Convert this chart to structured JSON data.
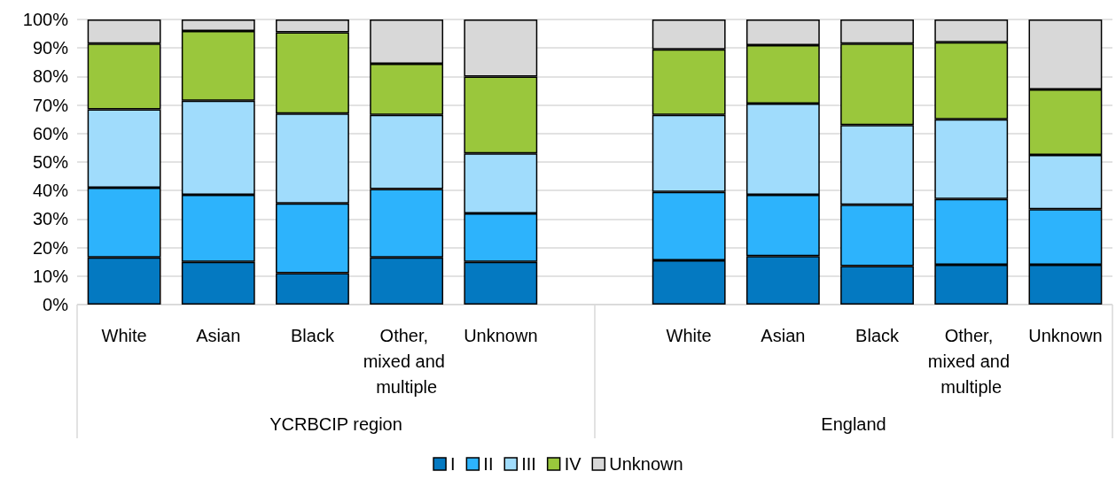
{
  "chart_data": {
    "type": "bar",
    "stacked": true,
    "categories": [
      "White",
      "Asian",
      "Black",
      "Other, mixed and multiple",
      "Unknown",
      null,
      "White",
      "Asian",
      "Black",
      "Other, mixed and multiple",
      "Unknown"
    ],
    "series": [
      {
        "name": "I",
        "color": "#0479c1",
        "values": [
          16.5,
          15,
          11,
          16.5,
          15,
          null,
          15.5,
          17,
          13.5,
          14,
          14
        ]
      },
      {
        "name": "II",
        "color": "#2db3fc",
        "values": [
          24.5,
          23.5,
          24.5,
          24,
          17,
          null,
          24,
          21.5,
          21.5,
          23,
          19.5
        ]
      },
      {
        "name": "III",
        "color": "#a0dcfc",
        "values": [
          27.5,
          33,
          31.5,
          26,
          21,
          null,
          27,
          32,
          28,
          28,
          19
        ]
      },
      {
        "name": "IV",
        "color": "#9ac73c",
        "values": [
          23,
          24.5,
          28.5,
          18,
          27,
          null,
          23,
          20.5,
          28.5,
          27,
          23
        ]
      },
      {
        "name": "Unknown",
        "color": "#d8d8d8",
        "values": [
          8.5,
          4,
          4.5,
          15.5,
          20,
          null,
          10.5,
          9,
          8.5,
          8,
          24.5
        ]
      }
    ],
    "ylim": [
      0,
      100
    ],
    "yticks": [
      {
        "value": 0,
        "label": "0%"
      },
      {
        "value": 10,
        "label": "10%"
      },
      {
        "value": 20,
        "label": "20%"
      },
      {
        "value": 30,
        "label": "30%"
      },
      {
        "value": 40,
        "label": "40%"
      },
      {
        "value": 50,
        "label": "50%"
      },
      {
        "value": 60,
        "label": "60%"
      },
      {
        "value": 70,
        "label": "70%"
      },
      {
        "value": 80,
        "label": "80%"
      },
      {
        "value": 90,
        "label": "90%"
      },
      {
        "value": 100,
        "label": "100%"
      }
    ],
    "grid": "y",
    "legend": "bottom",
    "annotations": [
      "YCRBCIP region",
      "England"
    ]
  }
}
